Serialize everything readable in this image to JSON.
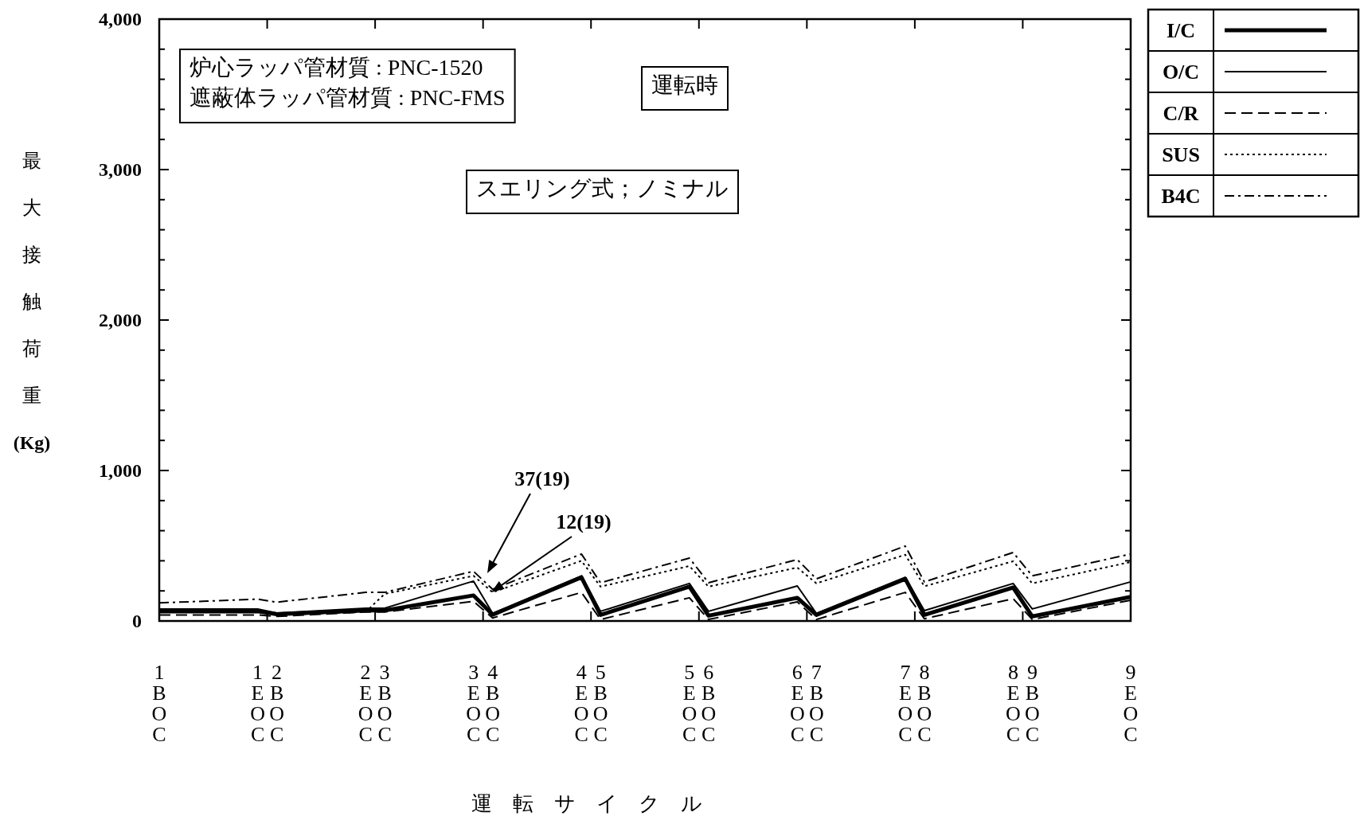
{
  "chart_data": {
    "type": "line",
    "xlabel": "運転サイクル",
    "ylabel": "最大接触荷重(Kg)",
    "annotations": [
      "炉心ラッパ管材質 : PNC-1520",
      "遮蔽体ラッパ管材質 : PNC-FMS",
      "運転時",
      "スエリング式；ノミナル",
      "37(19)",
      "12(19)"
    ],
    "categories": [
      "1BOC",
      "1EOC",
      "2BOC",
      "2EOC",
      "3BOC",
      "3EOC",
      "4BOC",
      "4EOC",
      "5BOC",
      "5EOC",
      "6BOC",
      "6EOC",
      "7BOC",
      "7EOC",
      "8BOC",
      "8EOC",
      "9BOC",
      "9EOC"
    ],
    "ylim": [
      0,
      4000
    ],
    "yticks": [
      0,
      {
        "value": 200,
        "label": null
      },
      {
        "value": 400,
        "label": null
      },
      {
        "value": 600,
        "label": null
      },
      {
        "value": 800,
        "label": null
      },
      {
        "value": 1000,
        "label": "1,000"
      },
      {
        "value": 1200,
        "label": null
      },
      {
        "value": 1400,
        "label": null
      },
      {
        "value": 1600,
        "label": null
      },
      {
        "value": 1800,
        "label": null
      },
      {
        "value": 2000,
        "label": "2,000"
      },
      {
        "value": 2200,
        "label": null
      },
      {
        "value": 2400,
        "label": null
      },
      {
        "value": 2600,
        "label": null
      },
      {
        "value": 2800,
        "label": null
      },
      {
        "value": 3000,
        "label": "3,000"
      },
      {
        "value": 3200,
        "label": null
      },
      {
        "value": 3400,
        "label": null
      },
      {
        "value": 3600,
        "label": null
      },
      {
        "value": 3800,
        "label": null
      },
      {
        "value": 4000,
        "label": "4,000"
      }
    ],
    "legend": "top right",
    "series": [
      {
        "name": "I/C",
        "color": "#000000",
        "line_style": "solid",
        "values": [
          64,
          64,
          45,
          70,
          70,
          170,
          42,
          290,
          40,
          228,
          35,
          154,
          40,
          280,
          40,
          222,
          30,
          160
        ]
      },
      {
        "name": "O/C",
        "color": "#000000",
        "line_style": "solid",
        "values": [
          80,
          80,
          53,
          85,
          85,
          265,
          50,
          300,
          64,
          249,
          64,
          233,
          50,
          290,
          69,
          249,
          80,
          260
        ]
      },
      {
        "name": "C/R",
        "color": "#000000",
        "line_style": "dashed",
        "values": [
          40,
          40,
          30,
          60,
          60,
          130,
          20,
          190,
          10,
          154,
          10,
          127,
          10,
          190,
          15,
          148,
          10,
          138
        ]
      },
      {
        "name": "SUS",
        "color": "#000000",
        "line_style": "dotted",
        "values": [
          60,
          60,
          40,
          60,
          180,
          300,
          190,
          400,
          228,
          365,
          228,
          355,
          250,
          440,
          230,
          397,
          250,
          392
        ]
      },
      {
        "name": "B4C",
        "color": "#000000",
        "line_style": "dashdot",
        "values": [
          120,
          145,
          125,
          190,
          190,
          330,
          210,
          445,
          254,
          418,
          254,
          408,
          280,
          498,
          260,
          455,
          300,
          445
        ]
      }
    ]
  }
}
